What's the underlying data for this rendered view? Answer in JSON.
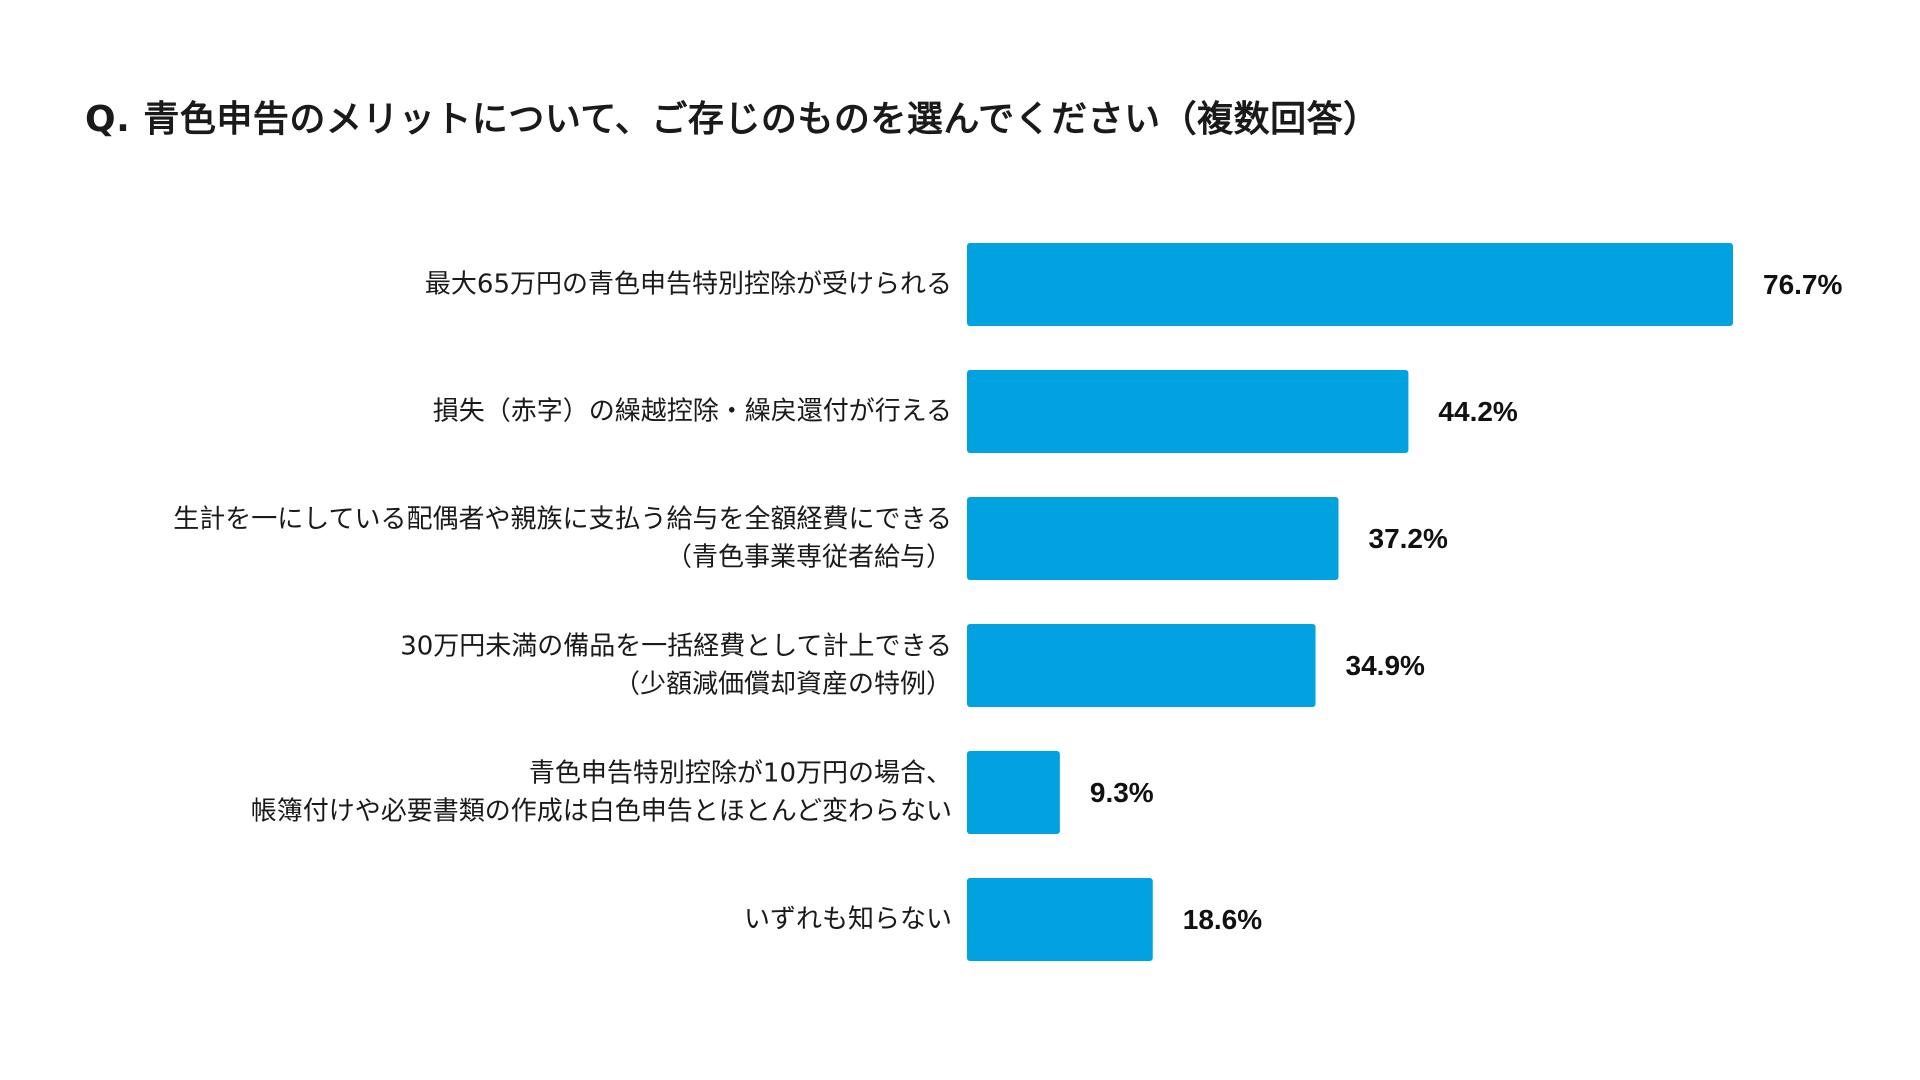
{
  "title": "Q. 青色申告のメリットについて、ご存じのものを選んでください（複数回答）",
  "chart_data": {
    "type": "bar",
    "orientation": "horizontal",
    "bar_color": "#00a3e0",
    "value_suffix": "%",
    "xlim": [
      0,
      80
    ],
    "grid": false,
    "categories": [
      [
        "最大65万円の青色申告特別控除が受けられる"
      ],
      [
        "損失（赤字）の繰越控除・繰戻還付が行える"
      ],
      [
        "生計を一にしている配偶者や親族に支払う給与を全額経費にできる",
        "（青色事業専従者給与）"
      ],
      [
        "30万円未満の備品を一括経費として計上できる",
        "（少額減価償却資産の特例）"
      ],
      [
        "青色申告特別控除が10万円の場合、",
        "帳簿付けや必要書類の作成は白色申告とほとんど変わらない"
      ],
      [
        "いずれも知らない"
      ]
    ],
    "values": [
      76.7,
      44.2,
      37.2,
      34.9,
      9.3,
      18.6
    ],
    "value_labels": [
      "76.7%",
      "44.2%",
      "37.2%",
      "34.9%",
      "9.3%",
      "18.6%"
    ]
  }
}
